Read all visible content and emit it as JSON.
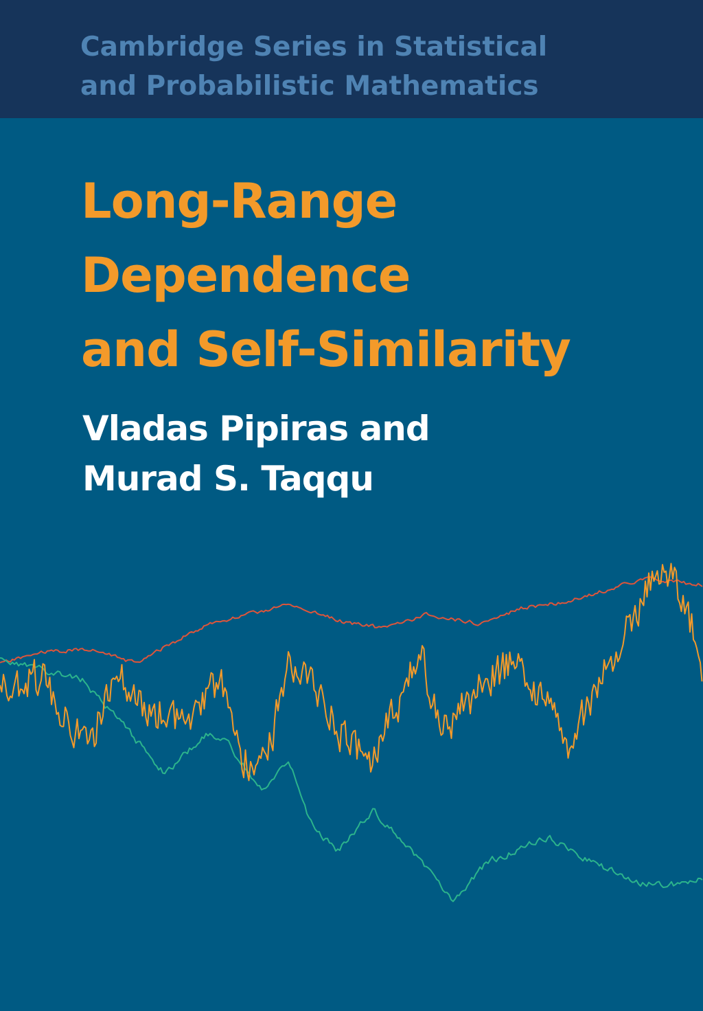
{
  "series": {
    "line1": "Cambridge Series in Statistical",
    "line2": "and Probabilistic Mathematics"
  },
  "title": {
    "line1": "Long-Range",
    "line2": "Dependence",
    "line3": "and Self-Similarity"
  },
  "authors": {
    "line1": "Vladas Pipiras and",
    "line2": "Murad S. Taqqu"
  },
  "colors": {
    "band": "#16345a",
    "background": "#005a83",
    "series_text": "#4f83b3",
    "title": "#f39a2a",
    "authors": "#ffffff",
    "trace_orange": "#f39a2a",
    "trace_green": "#2cb48c",
    "trace_red": "#e0553a"
  }
}
